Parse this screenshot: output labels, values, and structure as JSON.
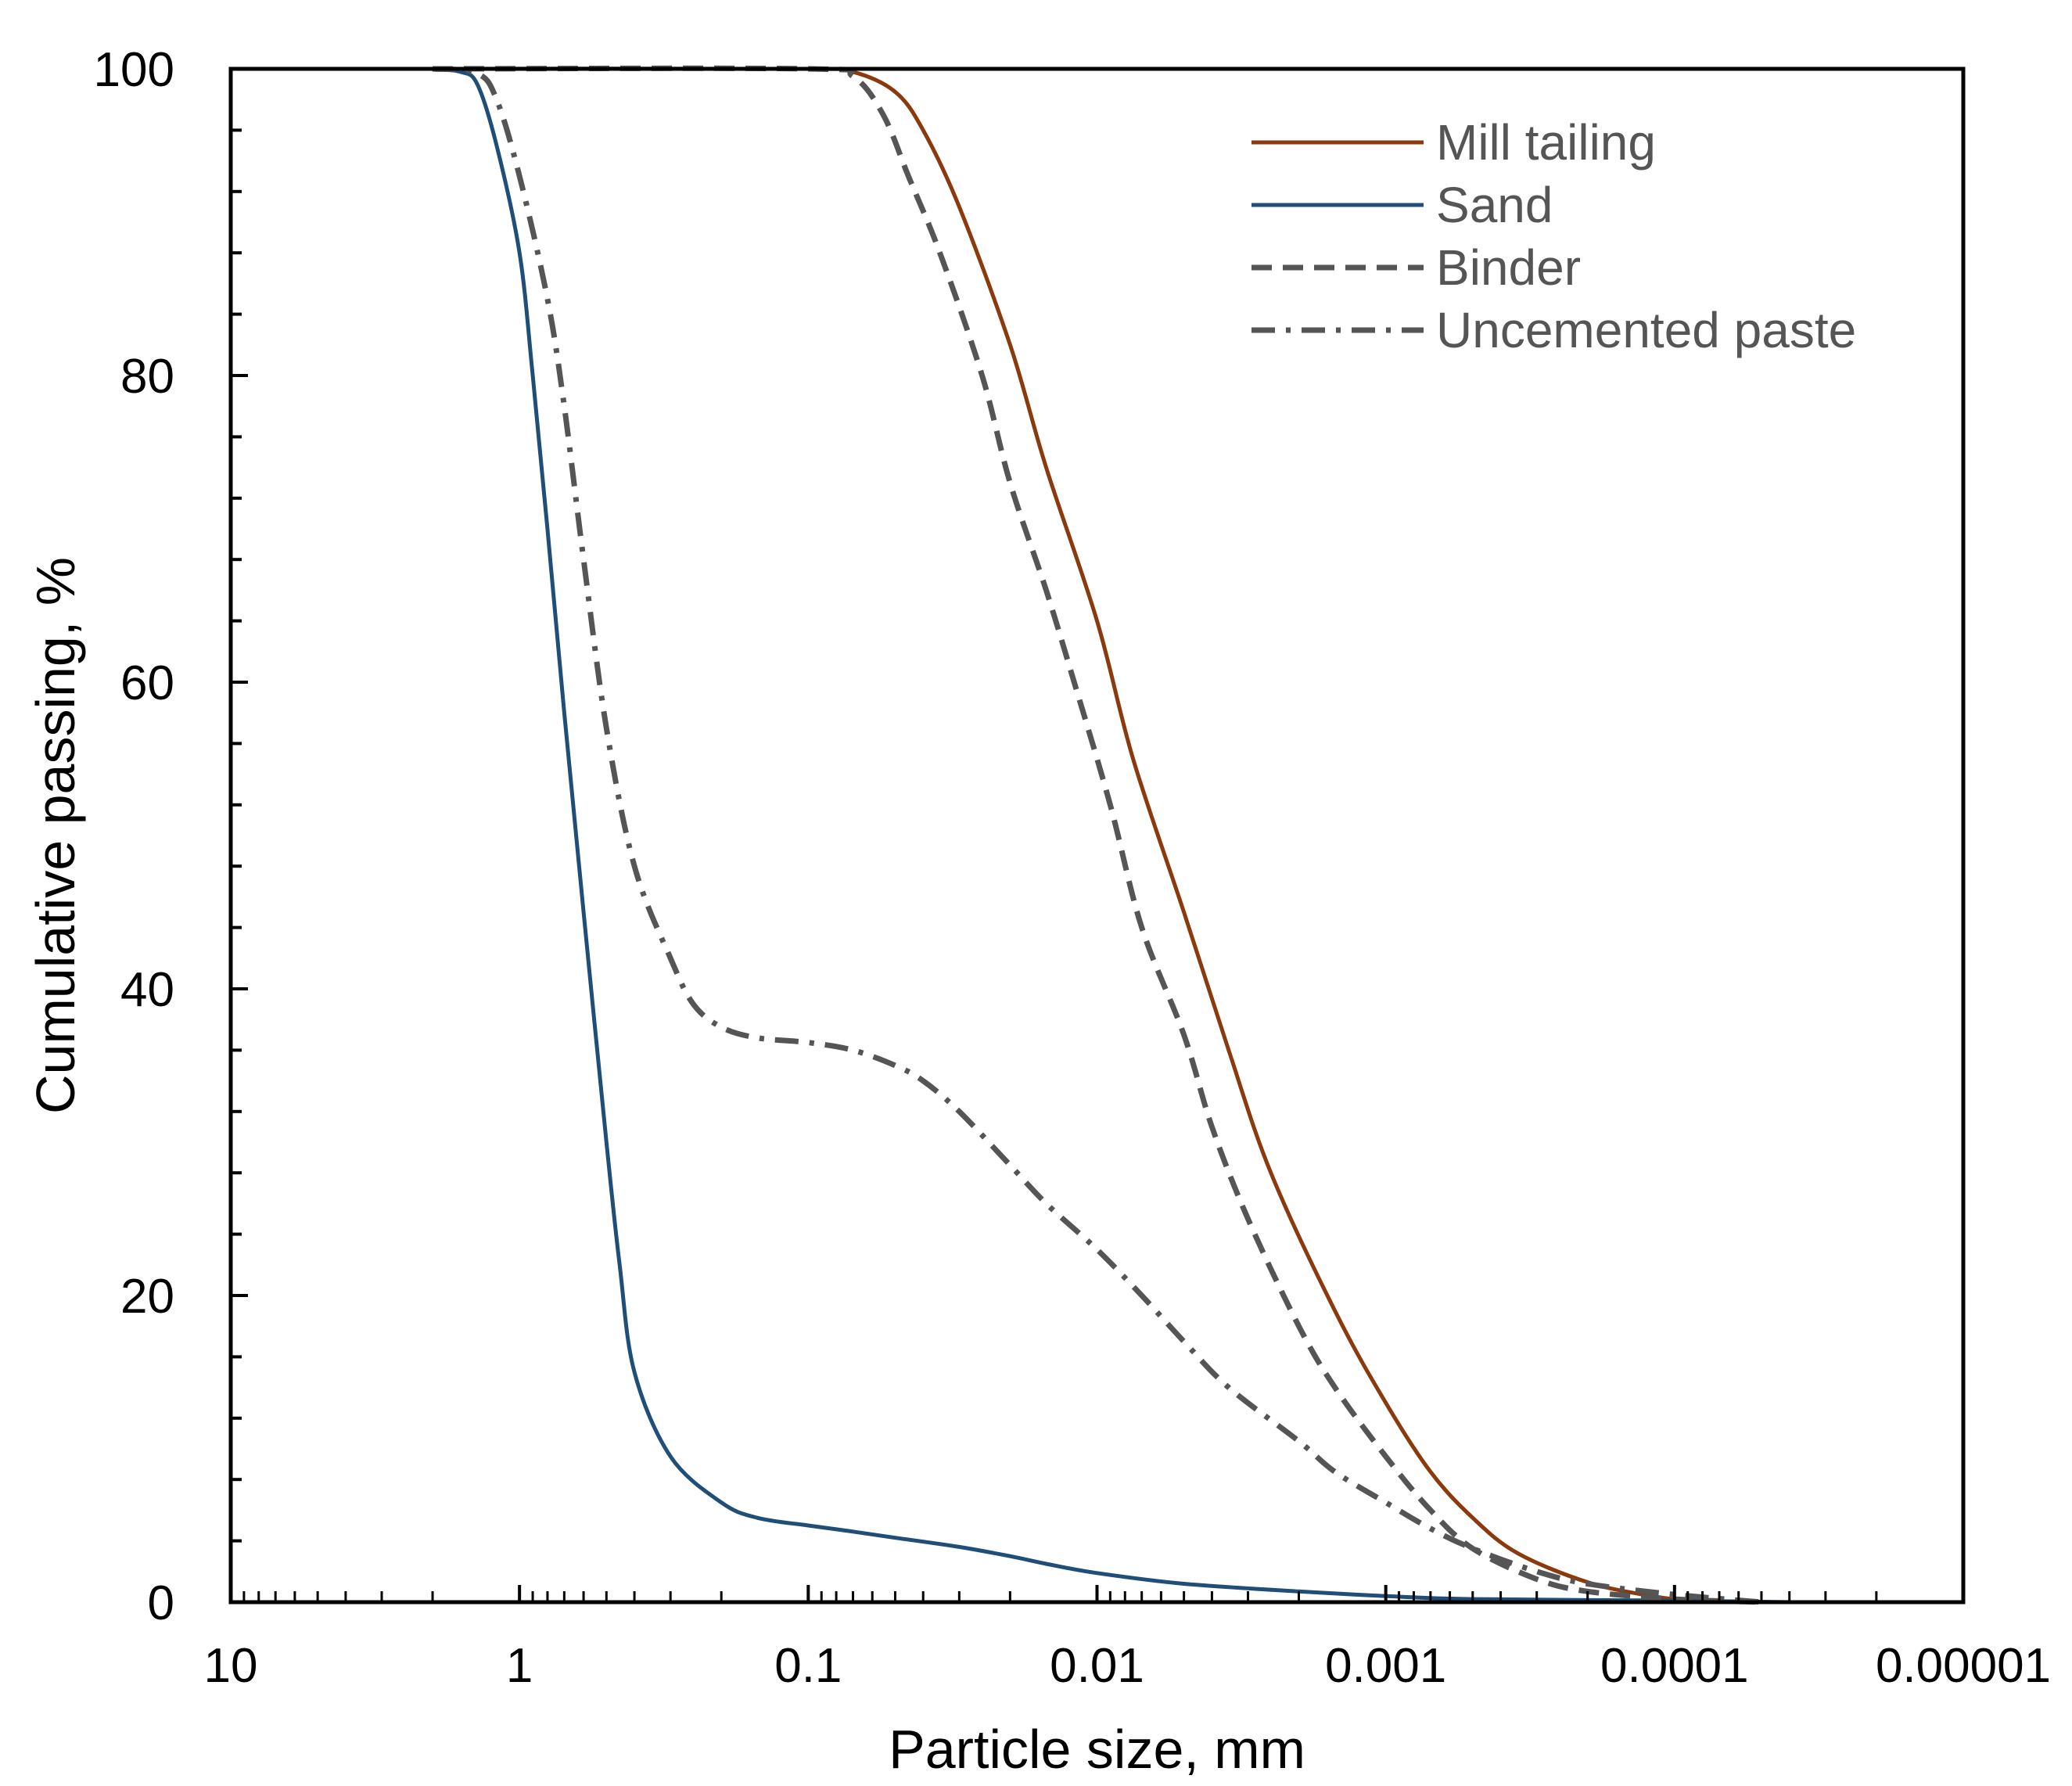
{
  "chart_data": {
    "type": "line",
    "xscale": "log",
    "xaxis_reversed": true,
    "xlim": [
      10,
      1e-05
    ],
    "ylim": [
      0,
      100
    ],
    "xlabel": "Particle size, mm",
    "ylabel": "Cumulative passing, %",
    "x_ticks": [
      {
        "value": 10,
        "label": "10"
      },
      {
        "value": 1,
        "label": "1"
      },
      {
        "value": 0.1,
        "label": "0.1"
      },
      {
        "value": 0.01,
        "label": "0.01"
      },
      {
        "value": 0.001,
        "label": "0.001"
      },
      {
        "value": 0.0001,
        "label": "0.0001"
      },
      {
        "value": 1e-05,
        "label": "0.00001"
      }
    ],
    "y_ticks": [
      {
        "value": 0,
        "label": "0"
      },
      {
        "value": 20,
        "label": "20"
      },
      {
        "value": 40,
        "label": "40"
      },
      {
        "value": 60,
        "label": "60"
      },
      {
        "value": 80,
        "label": "80"
      },
      {
        "value": 100,
        "label": "100"
      }
    ],
    "legend_position": "top-right",
    "series": [
      {
        "name": "Mill tailing",
        "color": "#8B3A0E",
        "dash": "solid",
        "points": [
          [
            2.0,
            100
          ],
          [
            0.1,
            100
          ],
          [
            0.07,
            99.8
          ],
          [
            0.05,
            98.5
          ],
          [
            0.04,
            96
          ],
          [
            0.03,
            91
          ],
          [
            0.02,
            82
          ],
          [
            0.015,
            74
          ],
          [
            0.01,
            64
          ],
          [
            0.0075,
            55
          ],
          [
            0.005,
            45
          ],
          [
            0.0035,
            36
          ],
          [
            0.0025,
            28
          ],
          [
            0.0015,
            19
          ],
          [
            0.001,
            13
          ],
          [
            0.0007,
            8.5
          ],
          [
            0.0005,
            5.5
          ],
          [
            0.00035,
            3.2
          ],
          [
            0.0002,
            1.3
          ],
          [
            0.00012,
            0.4
          ],
          [
            8e-05,
            0
          ]
        ]
      },
      {
        "name": "Sand",
        "color": "#1F4E79",
        "dash": "solid",
        "points": [
          [
            2.0,
            100
          ],
          [
            1.6,
            99.8
          ],
          [
            1.4,
            99
          ],
          [
            1.2,
            95
          ],
          [
            1.0,
            88
          ],
          [
            0.9,
            80
          ],
          [
            0.8,
            70
          ],
          [
            0.7,
            58
          ],
          [
            0.6,
            45
          ],
          [
            0.5,
            30
          ],
          [
            0.45,
            22
          ],
          [
            0.4,
            15
          ],
          [
            0.3,
            9.5
          ],
          [
            0.2,
            6.5
          ],
          [
            0.15,
            5.5
          ],
          [
            0.1,
            5
          ],
          [
            0.07,
            4.6
          ],
          [
            0.05,
            4.2
          ],
          [
            0.03,
            3.6
          ],
          [
            0.02,
            3
          ],
          [
            0.015,
            2.5
          ],
          [
            0.01,
            1.9
          ],
          [
            0.005,
            1.2
          ],
          [
            0.002,
            0.7
          ],
          [
            0.001,
            0.4
          ],
          [
            0.0005,
            0.2
          ],
          [
            0.0001,
            0.1
          ],
          [
            4e-05,
            0
          ]
        ]
      },
      {
        "name": "Binder",
        "color": "#555555",
        "dash": "dashed",
        "points": [
          [
            2.0,
            100
          ],
          [
            0.1,
            100
          ],
          [
            0.07,
            99.5
          ],
          [
            0.055,
            97
          ],
          [
            0.045,
            93
          ],
          [
            0.035,
            88
          ],
          [
            0.025,
            80
          ],
          [
            0.02,
            73
          ],
          [
            0.015,
            66
          ],
          [
            0.012,
            60
          ],
          [
            0.009,
            52
          ],
          [
            0.007,
            44
          ],
          [
            0.005,
            37
          ],
          [
            0.004,
            31
          ],
          [
            0.003,
            25
          ],
          [
            0.002,
            18
          ],
          [
            0.0015,
            14
          ],
          [
            0.001,
            9.5
          ],
          [
            0.0007,
            6
          ],
          [
            0.0005,
            3.5
          ],
          [
            0.0003,
            1.5
          ],
          [
            0.0002,
            0.7
          ],
          [
            0.0001,
            0.2
          ],
          [
            5e-05,
            0
          ]
        ]
      },
      {
        "name": "Uncemented paste",
        "color": "#555555",
        "dash": "dashdot",
        "points": [
          [
            2.0,
            100
          ],
          [
            1.4,
            99.7
          ],
          [
            1.2,
            98
          ],
          [
            1.0,
            93
          ],
          [
            0.8,
            85
          ],
          [
            0.7,
            78
          ],
          [
            0.6,
            68
          ],
          [
            0.5,
            57
          ],
          [
            0.4,
            48
          ],
          [
            0.3,
            42
          ],
          [
            0.25,
            39
          ],
          [
            0.2,
            37.5
          ],
          [
            0.15,
            36.8
          ],
          [
            0.1,
            36.5
          ],
          [
            0.07,
            36
          ],
          [
            0.05,
            35
          ],
          [
            0.04,
            34
          ],
          [
            0.03,
            32
          ],
          [
            0.02,
            28.5
          ],
          [
            0.015,
            26
          ],
          [
            0.01,
            23
          ],
          [
            0.007,
            20
          ],
          [
            0.005,
            17
          ],
          [
            0.0035,
            14
          ],
          [
            0.002,
            10.5
          ],
          [
            0.0015,
            8.5
          ],
          [
            0.001,
            6.5
          ],
          [
            0.0007,
            4.8
          ],
          [
            0.0005,
            3.5
          ],
          [
            0.0003,
            2
          ],
          [
            0.0002,
            1.2
          ],
          [
            0.0001,
            0.5
          ],
          [
            5e-05,
            0
          ]
        ]
      }
    ]
  }
}
